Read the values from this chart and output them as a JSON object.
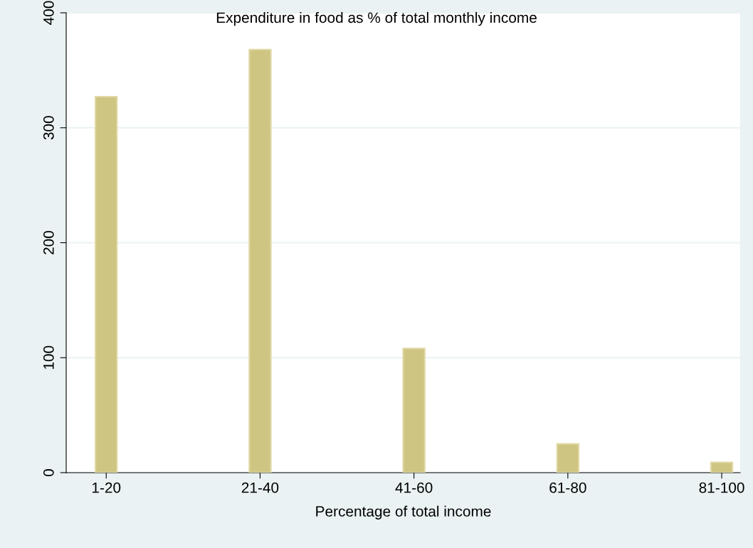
{
  "chart_data": {
    "type": "bar",
    "title": "Expenditure in food as % of total monthly income",
    "xlabel": "Percentage of total income",
    "categories": [
      "1-20",
      "21-40",
      "41-60",
      "61-80",
      "81-100"
    ],
    "values": [
      327,
      368,
      108,
      25,
      9
    ],
    "color": "#cfc583",
    "ylim": [
      0,
      400
    ],
    "yticks": [
      0,
      100,
      200,
      300,
      400
    ],
    "grid": "y"
  }
}
